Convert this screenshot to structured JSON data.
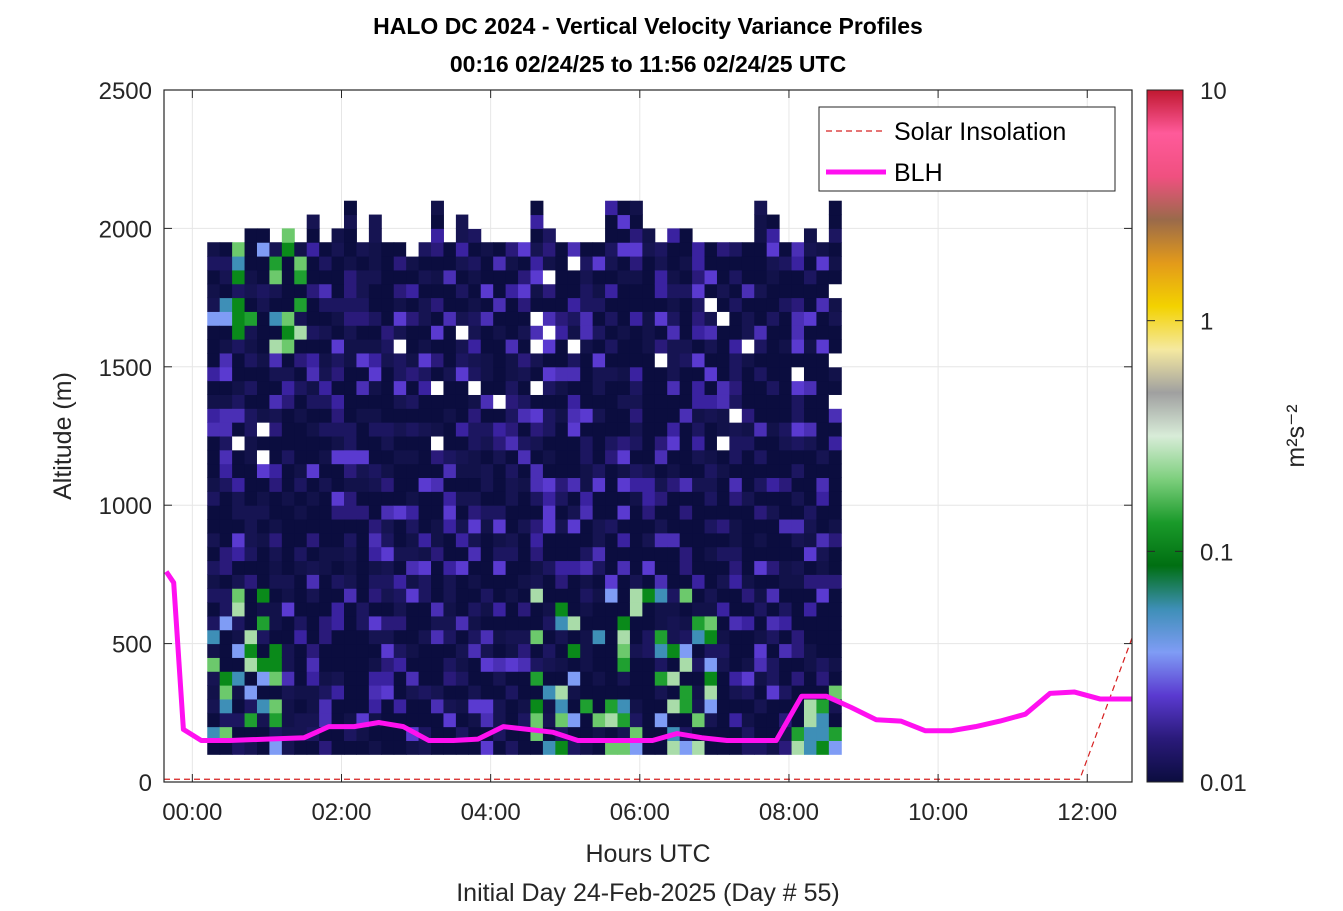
{
  "chart_data": {
    "type": "heatmap",
    "title": "HALO DC 2024 - Vertical Velocity Variance Profiles",
    "subtitle": "00:16 02/24/25 to 11:56 02/24/25  UTC",
    "xlabel": "Hours UTC",
    "xlabel2": "Initial Day 24-Feb-2025 (Day # 55)",
    "ylabel": "Altitude (m)",
    "xlim": [
      -0.38,
      12.6
    ],
    "ylim": [
      0,
      2500
    ],
    "x_ticks": [
      0,
      2,
      4,
      6,
      8,
      10,
      12
    ],
    "x_tick_labels": [
      "00:00",
      "02:00",
      "04:00",
      "06:00",
      "08:00",
      "10:00",
      "12:00"
    ],
    "y_ticks": [
      0,
      500,
      1000,
      1500,
      2000,
      2500
    ],
    "y_tick_labels": [
      "0",
      "500",
      "1000",
      "1500",
      "2000",
      "2500"
    ],
    "grid": true,
    "legend_position": "top-right",
    "colorbar": {
      "label": "m²s⁻²",
      "scale": "log",
      "range": [
        0.01,
        10
      ],
      "tick_values": [
        0.01,
        0.1,
        1,
        10
      ],
      "tick_labels": [
        "0.01",
        "0.1",
        "1",
        "10"
      ],
      "colors": [
        "#0b0d3f",
        "#2a1a7a",
        "#5a3ad0",
        "#7f9cf5",
        "#3e8fb7",
        "#006f12",
        "#1a9a2a",
        "#7dcf7d",
        "#d8ecd8",
        "#a0a0a0",
        "#f5e9a0",
        "#f3d200",
        "#e39a1a",
        "#9a6a4a",
        "#f05080",
        "#ff5a9a",
        "#c01830"
      ]
    },
    "heatmap_grid": {
      "time_start_hours": 0.2,
      "time_step_hours": 0.1667,
      "num_columns": 51,
      "altitude_start_m": 100,
      "altitude_step_m": 50,
      "top_altitude_m": 1950
    },
    "series": [
      {
        "name": "Solar Insolation",
        "style": "dashed",
        "color": "#d62020",
        "x": [
          -0.38,
          11.9,
          12.6
        ],
        "y": [
          10,
          10,
          520
        ]
      },
      {
        "name": "BLH",
        "style": "solid",
        "color": "#ff10f0",
        "x": [
          -0.35,
          -0.25,
          -0.12,
          0.12,
          0.5,
          1.0,
          1.5,
          1.83,
          2.17,
          2.5,
          2.83,
          3.17,
          3.5,
          3.83,
          4.17,
          4.5,
          4.83,
          5.17,
          5.5,
          5.83,
          6.17,
          6.5,
          6.83,
          7.17,
          7.5,
          7.83,
          8.17,
          8.5,
          8.83,
          9.17,
          9.5,
          9.83,
          10.17,
          10.5,
          10.83,
          11.17,
          11.5,
          11.83,
          12.17,
          12.6
        ],
        "y": [
          760,
          720,
          190,
          150,
          150,
          155,
          160,
          200,
          200,
          215,
          200,
          150,
          150,
          155,
          200,
          190,
          180,
          150,
          150,
          150,
          150,
          175,
          160,
          150,
          150,
          150,
          310,
          310,
          270,
          225,
          220,
          185,
          185,
          200,
          220,
          245,
          320,
          325,
          300,
          300
        ]
      }
    ]
  }
}
